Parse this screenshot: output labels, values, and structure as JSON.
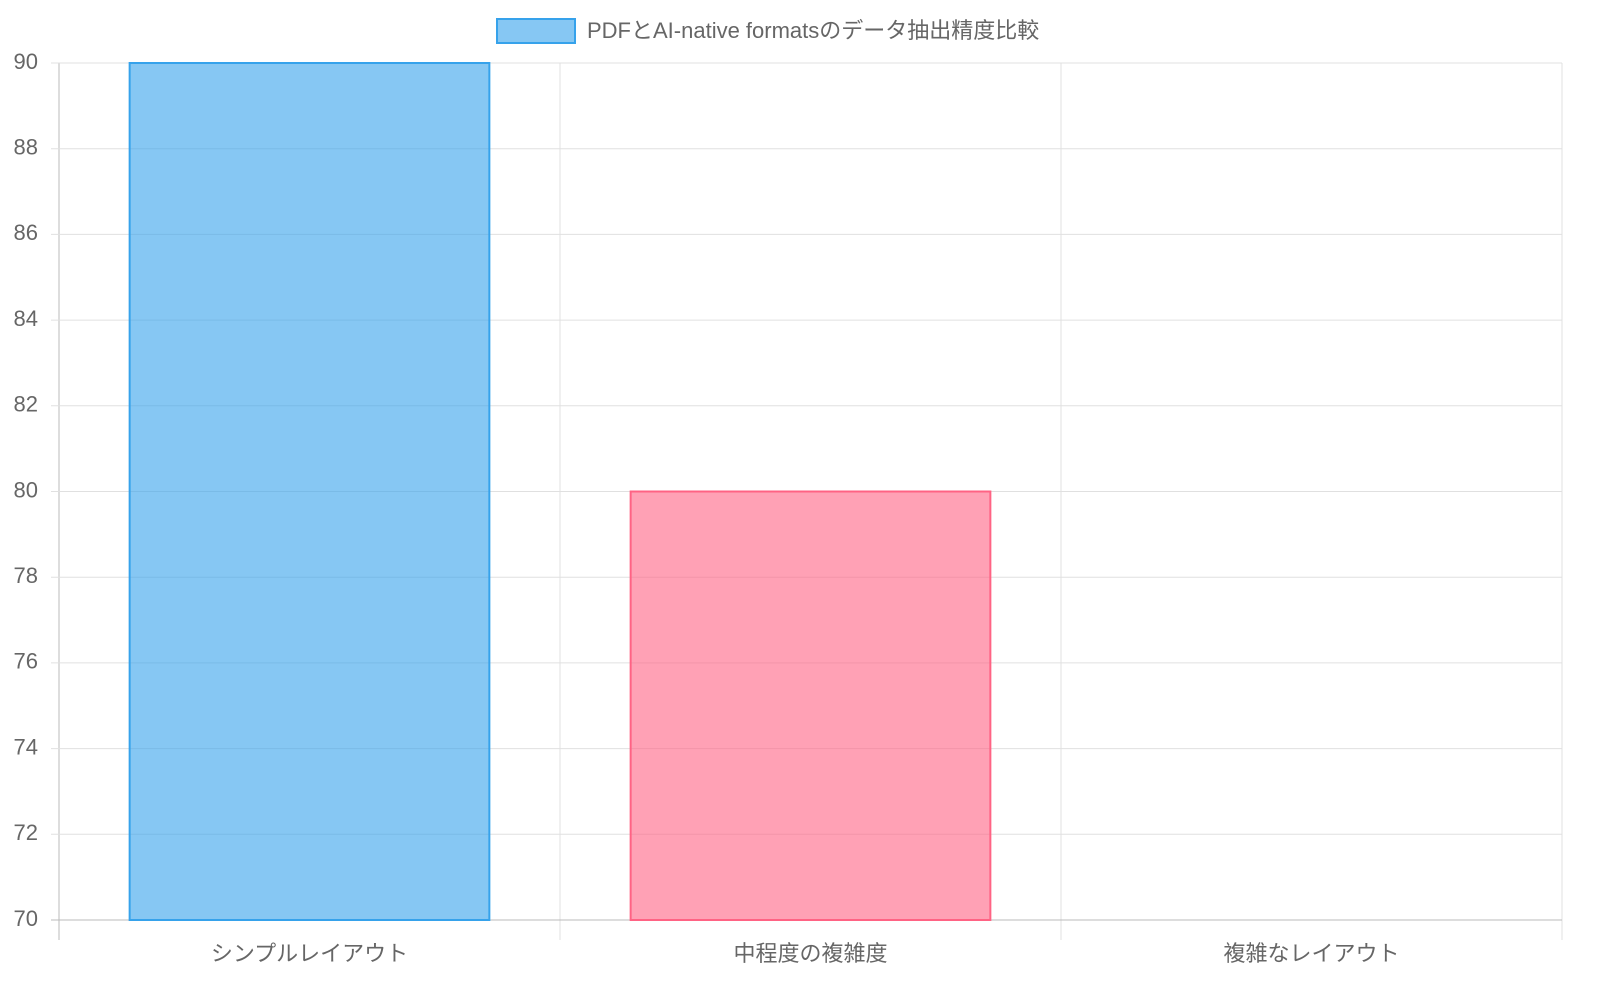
{
  "chart_data": {
    "type": "bar",
    "categories": [
      "シンプルレイアウト",
      "中程度の複雑度",
      "複雑なレイアウト"
    ],
    "series": [
      {
        "name": "PDFとAI-native formatsのデータ抽出精度比較",
        "colors": [
          "#36a2eb",
          "#ff6384"
        ],
        "values": [
          90,
          80,
          null
        ]
      }
    ],
    "ylim": [
      70,
      90
    ],
    "yticks": [
      70,
      72,
      74,
      76,
      78,
      80,
      82,
      84,
      86,
      88,
      90
    ],
    "grid": true
  }
}
